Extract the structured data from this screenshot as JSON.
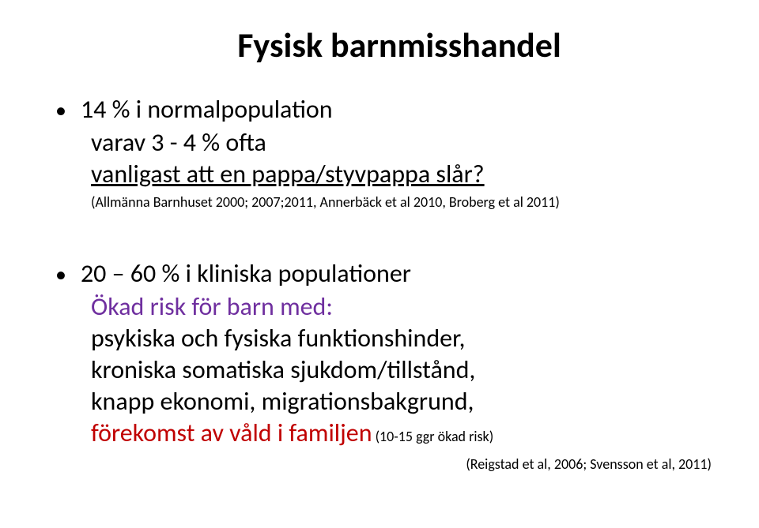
{
  "title": "Fysisk barnmisshandel",
  "block1": {
    "line1": "14 % i normalpopulation",
    "line2": "varav 3 - 4 %  ofta",
    "line3": "vanligast att en pappa/styvpappa slår?",
    "citation": "(Allmänna Barnhuset 2000; 2007;2011, Annerbäck et al 2010, Broberg  et al 2011)"
  },
  "block2": {
    "line1": "20 – 60 % i kliniska populationer",
    "line2": "Ökad risk för barn med:",
    "line3": "psykiska och fysiska funktionshinder,",
    "line4": "kroniska somatiska sjukdom/tillstånd,",
    "line5": "knapp ekonomi, migrationsbakgrund,",
    "line6_colored": "förekomst av våld i familjen",
    "line6_note": " (10-15 ggr ökad risk)",
    "citation": "(Reigstad et al, 2006; Svensson et al, 2011)"
  },
  "colors": {
    "purple": "#6f2f9f",
    "red": "#c00000"
  }
}
